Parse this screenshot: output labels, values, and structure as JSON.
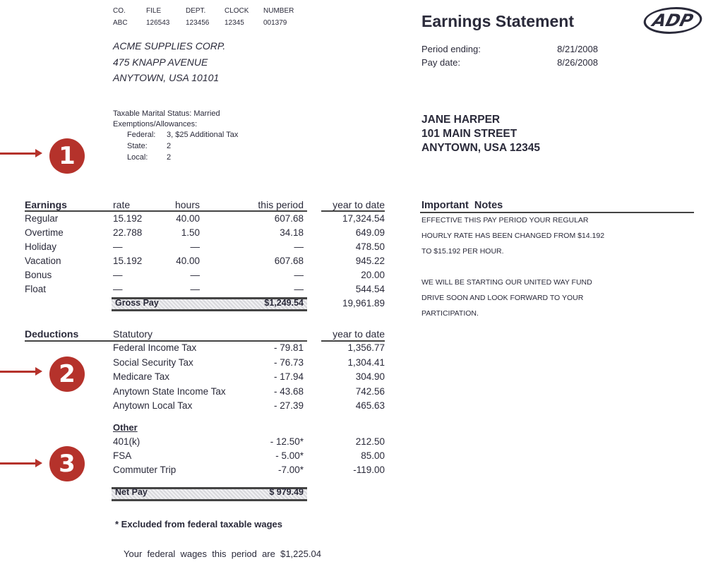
{
  "header": {
    "codes_labels": [
      "CO.",
      "FILE",
      "DEPT.",
      "CLOCK",
      "NUMBER"
    ],
    "codes_values": [
      "ABC",
      "126543",
      "123456",
      "12345",
      "001379"
    ]
  },
  "company": {
    "name": "ACME SUPPLIES CORP.",
    "address1": "475 KNAPP AVENUE",
    "address2": "ANYTOWN, USA 10101"
  },
  "tax_info": {
    "marital": "Taxable Marital Status: Married",
    "exemptions": "Exemptions/Allowances:",
    "federal_label": "Federal:",
    "federal_value": "3, $25  Additional  Tax",
    "state_label": "State:",
    "state_value": "2",
    "local_label": "Local:",
    "local_value": "2"
  },
  "statement": {
    "title": "Earnings Statement",
    "logo": "ADP",
    "period_ending_label": "Period ending:",
    "period_ending": "8/21/2008",
    "pay_date_label": "Pay date:",
    "pay_date": "8/26/2008"
  },
  "employee": {
    "name": "JANE HARPER",
    "address1": "101 MAIN STREET",
    "address2": "ANYTOWN, USA 12345"
  },
  "callouts": [
    "1",
    "2",
    "3"
  ],
  "earnings": {
    "headers": [
      "Earnings",
      "rate",
      "hours",
      "this period",
      "year to date"
    ],
    "rows": [
      [
        "Regular",
        "15.192",
        "40.00",
        "607.68",
        "17,324.54"
      ],
      [
        "Overtime",
        "22.788",
        "1.50",
        "34.18",
        "649.09"
      ],
      [
        "Holiday",
        "—",
        "—",
        "—",
        "478.50"
      ],
      [
        "Vacation",
        "15.192",
        "40.00",
        "607.68",
        "945.22"
      ],
      [
        "Bonus",
        "—",
        "—",
        "—",
        "20.00"
      ],
      [
        "Float",
        "—",
        "—",
        "—",
        "544.54"
      ]
    ],
    "gross_label": "Gross Pay",
    "gross_this_period": "$1,249.54",
    "gross_ytd": "19,961.89"
  },
  "deductions": {
    "title": "Deductions",
    "statutory_label": "Statutory",
    "ytd_label": "year to date",
    "statutory": [
      [
        "Federal Income Tax",
        "- 79.81",
        "1,356.77"
      ],
      [
        "Social Security Tax",
        "- 76.73",
        "1,304.41"
      ],
      [
        "Medicare Tax",
        "- 17.94",
        "304.90"
      ],
      [
        "Anytown State Income Tax",
        "- 43.68",
        "742.56"
      ],
      [
        "Anytown Local Tax",
        "- 27.39",
        "465.63"
      ]
    ],
    "other_label": "Other",
    "other": [
      [
        "401(k)",
        "- 12.50*",
        "212.50"
      ],
      [
        "FSA",
        "- 5.00*",
        "85.00"
      ],
      [
        "Commuter Trip",
        "-7.00*",
        "-119.00"
      ]
    ],
    "net_label": "Net Pay",
    "net_value": "$ 979.49"
  },
  "footnote": "* Excluded  from  federal  taxable  wages",
  "federal_wages": "Your  federal  wages  this  period  are  $1,225.04",
  "notes": {
    "title": "Important  Notes",
    "lines": [
      "EFFECTIVE THIS PAY PERIOD YOUR REGULAR",
      "HOURLY RATE HAS BEEN CHANGED FROM $14.192",
      "TO $15.192 PER HOUR.",
      "WE WILL BE STARTING OUR UNITED WAY FUND",
      "DRIVE SOON AND LOOK FORWARD TO YOUR",
      "PARTICIPATION."
    ]
  },
  "colors": {
    "callout": "#b5322b",
    "text": "#2a2a3a"
  }
}
